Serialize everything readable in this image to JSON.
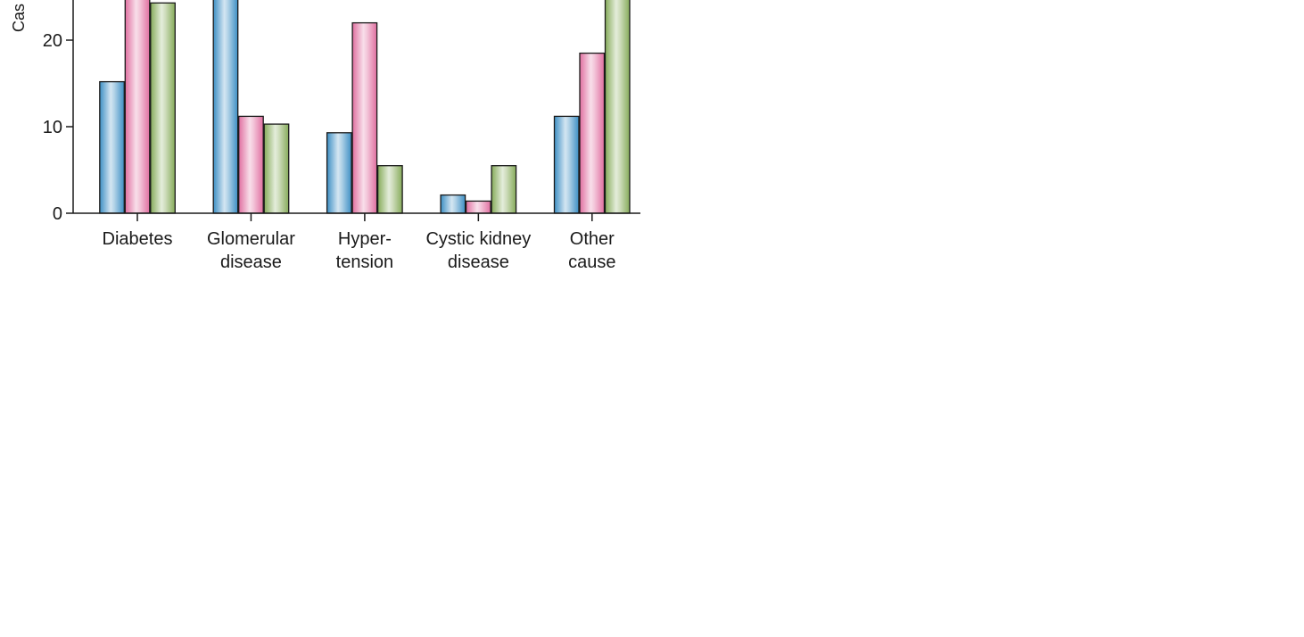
{
  "chart_data": {
    "type": "bar",
    "ylabel": "Cas",
    "yticks": [
      0,
      10,
      20
    ],
    "ylim": [
      0,
      25
    ],
    "grid": false,
    "categories": [
      [
        "Diabetes"
      ],
      [
        "Glomerular",
        "disease"
      ],
      [
        "Hyper-",
        "tension"
      ],
      [
        "Cystic kidney",
        "disease"
      ],
      [
        "Other",
        "cause"
      ]
    ],
    "series": [
      {
        "color": "#3d8fc4",
        "values": [
          15.2,
          25.0,
          9.3,
          2.1,
          11.2
        ]
      },
      {
        "color": "#e06fa0",
        "values": [
          25.0,
          11.2,
          22.0,
          1.4,
          18.5
        ]
      },
      {
        "color": "#86ab5a",
        "values": [
          24.3,
          10.3,
          5.5,
          5.5,
          25.0
        ]
      }
    ]
  }
}
